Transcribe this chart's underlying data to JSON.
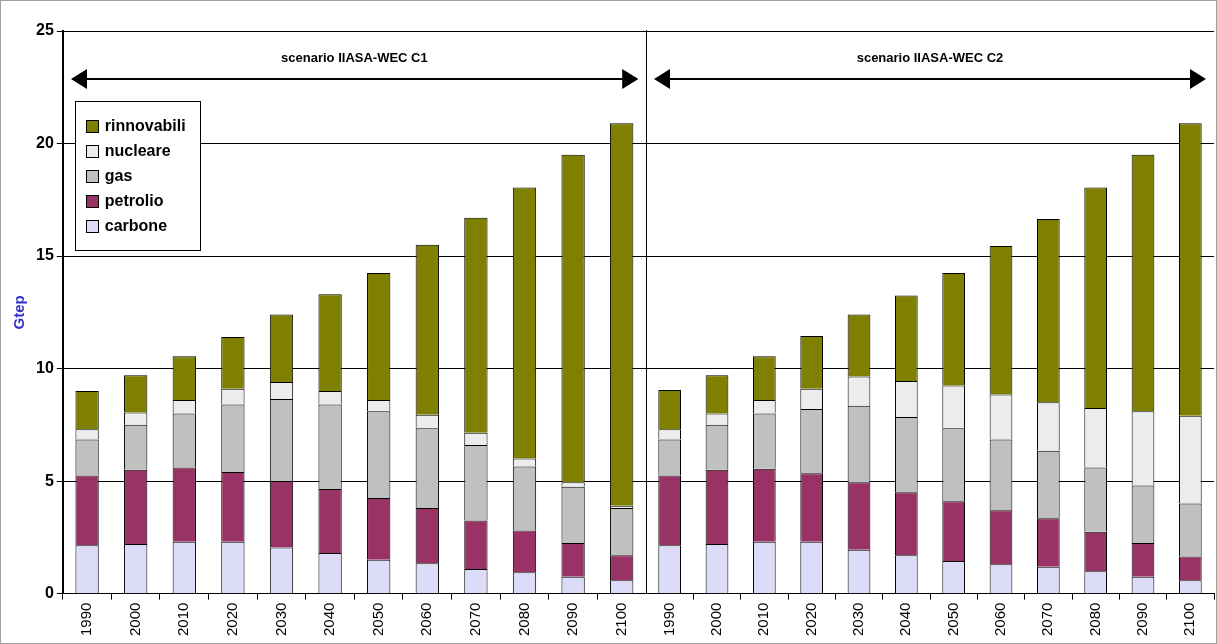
{
  "chart_data": [
    {
      "type": "bar",
      "stacked": true,
      "ylabel": "Gtep",
      "annotations": [
        "scenario IIASA-WEC C1"
      ],
      "categories": [
        "1990",
        "2000",
        "2010",
        "2020",
        "2030",
        "2040",
        "2050",
        "2060",
        "2070",
        "2080",
        "2090",
        "2100"
      ],
      "series": [
        {
          "name": "carbone",
          "color": "#dcdcf8",
          "values": [
            2.15,
            2.2,
            2.3,
            2.3,
            2.05,
            1.8,
            1.5,
            1.35,
            1.1,
            0.95,
            0.75,
            0.6
          ]
        },
        {
          "name": "petrolio",
          "color": "#993366",
          "values": [
            3.1,
            3.3,
            3.3,
            3.1,
            2.95,
            2.85,
            2.75,
            2.45,
            2.15,
            1.85,
            1.5,
            1.1
          ]
        },
        {
          "name": "gas",
          "color": "#c0c0c0",
          "values": [
            1.6,
            2.0,
            2.4,
            3.0,
            3.65,
            3.75,
            3.85,
            3.55,
            3.35,
            2.85,
            2.5,
            2.1
          ]
        },
        {
          "name": "nucleare",
          "color": "#ececec",
          "values": [
            0.45,
            0.55,
            0.6,
            0.7,
            0.75,
            0.6,
            0.5,
            0.6,
            0.55,
            0.35,
            0.2,
            0.1
          ]
        },
        {
          "name": "rinnovabili",
          "color": "#808000",
          "values": [
            1.7,
            1.65,
            1.95,
            2.3,
            3.0,
            4.3,
            5.65,
            7.55,
            9.55,
            12.05,
            14.55,
            17.0
          ]
        }
      ],
      "ylim": [
        0,
        25
      ],
      "yticks": [
        0,
        5,
        10,
        15,
        20,
        25
      ],
      "grid": "y",
      "legend": "top left"
    },
    {
      "type": "bar",
      "stacked": true,
      "annotations": [
        "scenario IIASA-WEC C2"
      ],
      "categories": [
        "1990",
        "2000",
        "2010",
        "2020",
        "2030",
        "2040",
        "2050",
        "2060",
        "2070",
        "2080",
        "2090",
        "2100"
      ],
      "series": [
        {
          "color": "#dcdcf8",
          "values": [
            2.15,
            2.2,
            2.3,
            2.3,
            1.95,
            1.7,
            1.45,
            1.3,
            1.2,
            1.0,
            0.75,
            0.6
          ]
        },
        {
          "color": "#993366",
          "values": [
            3.1,
            3.3,
            3.25,
            3.05,
            3.0,
            2.8,
            2.65,
            2.4,
            2.15,
            1.75,
            1.5,
            1.05
          ]
        },
        {
          "color": "#c0c0c0",
          "values": [
            1.6,
            2.0,
            2.45,
            2.85,
            3.4,
            3.35,
            3.25,
            3.15,
            3.0,
            2.85,
            2.55,
            2.35
          ]
        },
        {
          "color": "#ececec",
          "values": [
            0.45,
            0.5,
            0.6,
            0.9,
            1.3,
            1.6,
            1.9,
            2.0,
            2.15,
            2.65,
            3.3,
            3.9
          ]
        },
        {
          "color": "#808000",
          "values": [
            1.75,
            1.7,
            1.95,
            2.35,
            2.75,
            3.8,
            5.0,
            6.6,
            8.15,
            9.8,
            11.4,
            13.0
          ]
        }
      ],
      "ylim": [
        0,
        25
      ],
      "yticks": [
        0,
        5,
        10,
        15,
        20,
        25
      ],
      "grid": "y",
      "tick_labels": "x"
    }
  ]
}
